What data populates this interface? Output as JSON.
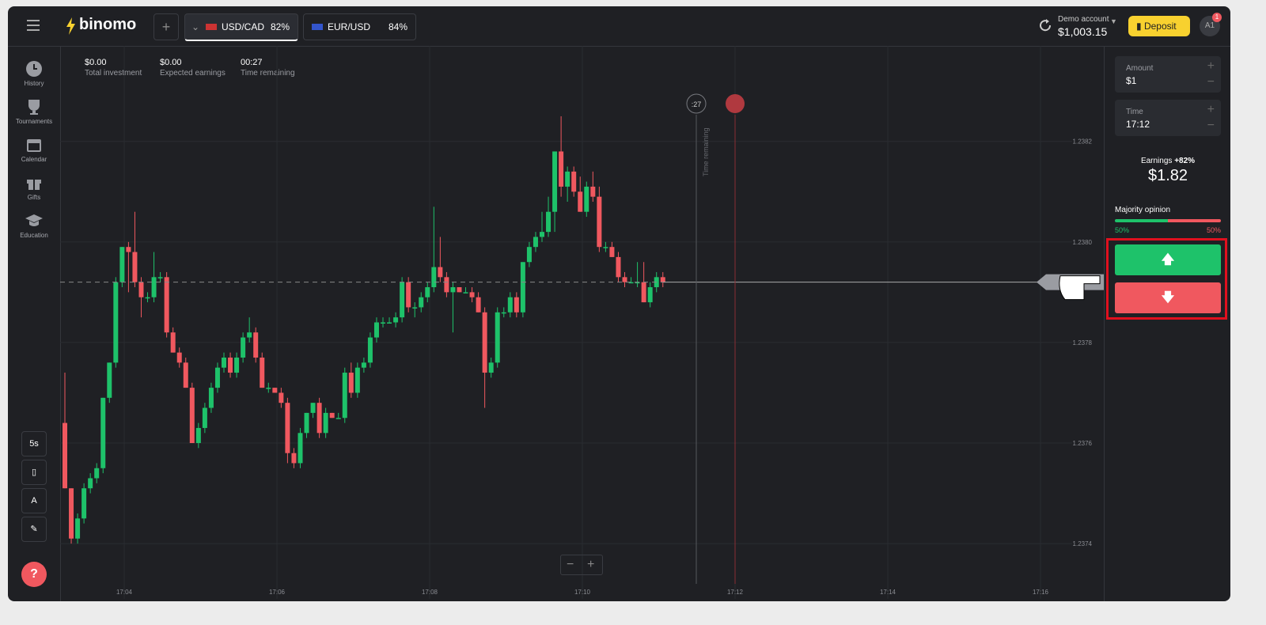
{
  "header": {
    "logo": "binomo",
    "tabs": [
      {
        "name": "USD/CAD",
        "percent": "82%"
      },
      {
        "name": "EUR/USD",
        "percent": "84%"
      }
    ],
    "account_label": "Demo account",
    "balance": "$1,003.15",
    "deposit": "Deposit",
    "avatar": "A1",
    "badge": "1"
  },
  "sidebar": {
    "items": [
      "History",
      "Tournaments",
      "Calendar",
      "Gifts",
      "Education"
    ],
    "timeframe": "5s",
    "help": "?"
  },
  "stats": [
    {
      "value": "$0.00",
      "label": "Total investment"
    },
    {
      "value": "$0.00",
      "label": "Expected earnings"
    },
    {
      "value": "00:27",
      "label": "Time remaining"
    }
  ],
  "chart_data": {
    "type": "candlestick",
    "up_color": "#1ec26a",
    "down_color": "#f0585f",
    "grid": true,
    "open": [
      1.23764,
      1.23751,
      1.23741,
      1.23745,
      1.23751,
      1.23753,
      1.23755,
      1.23769,
      1.23776,
      1.23792,
      1.23799,
      1.23798,
      1.23792,
      1.23789,
      1.23789,
      1.23793,
      1.23793,
      1.23782,
      1.23778,
      1.23776,
      1.23771,
      1.2376,
      1.23763,
      1.23767,
      1.23771,
      1.23775,
      1.23777,
      1.23774,
      1.23777,
      1.23781,
      1.23782,
      1.23777,
      1.23771,
      1.23771,
      1.2377,
      1.23768,
      1.23758,
      1.23756,
      1.23762,
      1.23766,
      1.23768,
      1.23762,
      1.23766,
      1.23765,
      1.23765,
      1.23774,
      1.2377,
      1.23775,
      1.23776,
      1.23781,
      1.23784,
      1.23784,
      1.23784,
      1.23785,
      1.23792,
      1.23787,
      1.23787,
      1.23789,
      1.23791,
      1.23795,
      1.23793,
      1.2379,
      1.23791,
      1.2379,
      1.2379,
      1.23789,
      1.23786,
      1.23774,
      1.23776,
      1.23786,
      1.23786,
      1.23789,
      1.23786,
      1.23796,
      1.23799,
      1.23801,
      1.23802,
      1.23806,
      1.23818,
      1.23811,
      1.23814,
      1.2381,
      1.23806,
      1.23811,
      1.23809,
      1.23799,
      1.23799,
      1.23797,
      1.23793,
      1.23792,
      1.23792,
      1.23792,
      1.23788,
      1.23791,
      1.23793
    ],
    "high": [
      1.23774,
      1.23751,
      1.23746,
      1.23752,
      1.23754,
      1.23756,
      1.23769,
      1.23776,
      1.23793,
      1.23799,
      1.238,
      1.23806,
      1.23793,
      1.2379,
      1.23798,
      1.23794,
      1.23794,
      1.23783,
      1.23779,
      1.23777,
      1.23772,
      1.23764,
      1.23768,
      1.23772,
      1.23776,
      1.23778,
      1.23778,
      1.23778,
      1.23782,
      1.23785,
      1.23783,
      1.23778,
      1.23772,
      1.23771,
      1.23771,
      1.23769,
      1.23759,
      1.23763,
      1.23766,
      1.23768,
      1.23769,
      1.23767,
      1.23766,
      1.23766,
      1.23775,
      1.23776,
      1.23776,
      1.23777,
      1.23782,
      1.23785,
      1.23785,
      1.23785,
      1.23786,
      1.23793,
      1.23793,
      1.23788,
      1.2379,
      1.23792,
      1.23807,
      1.23801,
      1.23794,
      1.23792,
      1.23791,
      1.23791,
      1.23791,
      1.2379,
      1.23787,
      1.23777,
      1.23787,
      1.23787,
      1.2379,
      1.2379,
      1.23796,
      1.238,
      1.23802,
      1.23806,
      1.23809,
      1.23818,
      1.23825,
      1.23815,
      1.23815,
      1.23813,
      1.23812,
      1.23814,
      1.23811,
      1.238,
      1.238,
      1.23798,
      1.23794,
      1.23793,
      1.23796,
      1.23796,
      1.23792,
      1.23794,
      1.23794
    ],
    "low": [
      1.23751,
      1.2374,
      1.2374,
      1.23744,
      1.2375,
      1.23752,
      1.23754,
      1.23768,
      1.23775,
      1.23791,
      1.2379,
      1.23791,
      1.23785,
      1.23788,
      1.23788,
      1.23792,
      1.23781,
      1.23778,
      1.23775,
      1.23771,
      1.2376,
      1.23759,
      1.23762,
      1.23766,
      1.2377,
      1.23774,
      1.23773,
      1.23773,
      1.23776,
      1.2378,
      1.23776,
      1.23771,
      1.2377,
      1.2377,
      1.23767,
      1.23756,
      1.23755,
      1.23755,
      1.23761,
      1.23765,
      1.23761,
      1.23761,
      1.23765,
      1.23765,
      1.23764,
      1.23769,
      1.23769,
      1.23774,
      1.23775,
      1.2378,
      1.23783,
      1.23784,
      1.23783,
      1.23784,
      1.23786,
      1.23785,
      1.23786,
      1.23788,
      1.2379,
      1.23792,
      1.23789,
      1.23782,
      1.2379,
      1.2379,
      1.23788,
      1.23786,
      1.23767,
      1.23773,
      1.23775,
      1.23785,
      1.23785,
      1.23785,
      1.23785,
      1.23795,
      1.23798,
      1.238,
      1.23801,
      1.23802,
      1.23809,
      1.23808,
      1.23809,
      1.23806,
      1.23805,
      1.23808,
      1.23798,
      1.23798,
      1.23797,
      1.23792,
      1.23791,
      1.23792,
      1.23791,
      1.23788,
      1.23787,
      1.2379,
      1.23791
    ],
    "close": [
      1.23751,
      1.23741,
      1.23745,
      1.23751,
      1.23753,
      1.23755,
      1.23769,
      1.23776,
      1.23792,
      1.23799,
      1.23798,
      1.23792,
      1.23789,
      1.23789,
      1.23793,
      1.23793,
      1.23782,
      1.23778,
      1.23776,
      1.23771,
      1.2376,
      1.23763,
      1.23767,
      1.23771,
      1.23775,
      1.23777,
      1.23774,
      1.23777,
      1.23781,
      1.23782,
      1.23777,
      1.23771,
      1.23771,
      1.2377,
      1.23768,
      1.23758,
      1.23756,
      1.23762,
      1.23766,
      1.23768,
      1.23762,
      1.23766,
      1.23765,
      1.23765,
      1.23774,
      1.2377,
      1.23775,
      1.23776,
      1.23781,
      1.23784,
      1.23784,
      1.23784,
      1.23785,
      1.23792,
      1.23787,
      1.23787,
      1.23789,
      1.23791,
      1.23795,
      1.23793,
      1.2379,
      1.23791,
      1.2379,
      1.2379,
      1.23789,
      1.23786,
      1.23774,
      1.23776,
      1.23786,
      1.23786,
      1.23789,
      1.23786,
      1.23796,
      1.23799,
      1.23801,
      1.23802,
      1.23806,
      1.23818,
      1.23811,
      1.23814,
      1.2381,
      1.23806,
      1.23811,
      1.23809,
      1.23799,
      1.23799,
      1.23797,
      1.23793,
      1.23792,
      1.23792,
      1.23792,
      1.23788,
      1.23791,
      1.23793,
      1.23792
    ],
    "ylim": [
      1.23729,
      1.23839
    ],
    "yticks": [
      1.2382,
      {
        "value": 1.238,
        "label": "1.2380"
      },
      1.2378,
      1.2376,
      1.2374
    ],
    "xticks": [
      "17:04",
      "17:06",
      "17:08",
      "17:10",
      "17:12",
      "17:14",
      "17:16"
    ],
    "timer": ":27",
    "timer_label": "Time remaining"
  },
  "panel": {
    "amount_label": "Amount",
    "amount": "$1",
    "time_label": "Time",
    "time": "17:12",
    "earnings_label": "Earnings",
    "earnings_percent": "+82%",
    "earnings": "$1.82",
    "majority_label": "Majority opinion",
    "majority_up": "50%",
    "majority_down": "50%"
  }
}
